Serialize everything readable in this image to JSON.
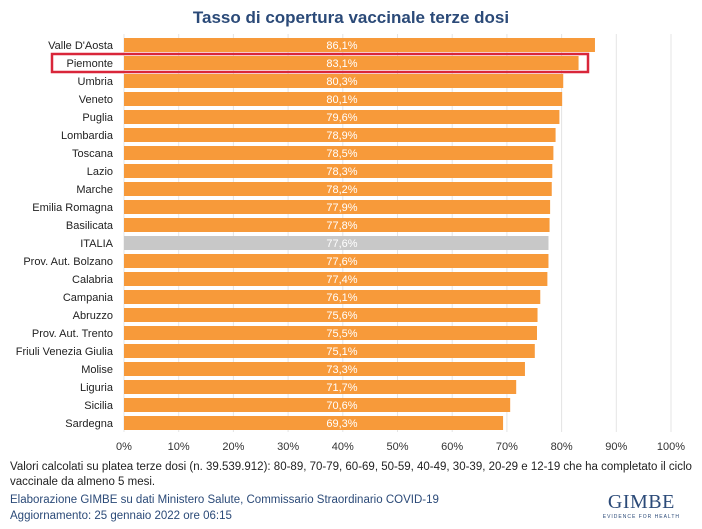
{
  "chart_data": {
    "type": "bar",
    "orientation": "horizontal",
    "title": "Tasso di copertura vaccinale terze dosi",
    "categories": [
      "Valle D'Aosta",
      "Piemonte",
      "Umbria",
      "Veneto",
      "Puglia",
      "Lombardia",
      "Toscana",
      "Lazio",
      "Marche",
      "Emilia Romagna",
      "Basilicata",
      "ITALIA",
      "Prov. Aut. Bolzano",
      "Calabria",
      "Campania",
      "Abruzzo",
      "Prov. Aut. Trento",
      "Friuli Venezia Giulia",
      "Molise",
      "Liguria",
      "Sicilia",
      "Sardegna"
    ],
    "values": [
      86.1,
      83.1,
      80.3,
      80.1,
      79.6,
      78.9,
      78.5,
      78.3,
      78.2,
      77.9,
      77.8,
      77.6,
      77.6,
      77.4,
      76.1,
      75.6,
      75.5,
      75.1,
      73.3,
      71.7,
      70.6,
      69.3
    ],
    "value_labels": [
      "86,1%",
      "83,1%",
      "80,3%",
      "80,1%",
      "79,6%",
      "78,9%",
      "78,5%",
      "78,3%",
      "78,2%",
      "77,9%",
      "77,8%",
      "77,6%",
      "77,6%",
      "77,4%",
      "76,1%",
      "75,6%",
      "75,5%",
      "75,1%",
      "73,3%",
      "71,7%",
      "70,6%",
      "69,3%"
    ],
    "xlim": [
      0,
      100
    ],
    "xticks": [
      "0%",
      "10%",
      "20%",
      "30%",
      "40%",
      "50%",
      "60%",
      "70%",
      "80%",
      "90%",
      "100%"
    ],
    "highlighted": "Piemonte",
    "grid": true,
    "colors": {
      "bar": "#f79a3a",
      "italia": "#c8c8c8",
      "highlight_box": "#d9263a",
      "label": "#ffffff"
    }
  },
  "notes": {
    "line1": "Valori calcolati su platea terze dosi (n. 39.539.912): 80-89, 70-79, 60-69, 50-59, 40-49, 30-39, 20-29 e 12-19 che ha completato il ciclo",
    "line2": "vaccinale da almeno 5 mesi.",
    "source": "Elaborazione GIMBE su dati Ministero Salute, Commissario Straordinario COVID-19",
    "updated": "Aggiornamento: 25 gennaio 2022 ore 06:15"
  },
  "logo": {
    "name": "GIMBE",
    "tagline": "EVIDENCE FOR HEALTH"
  }
}
